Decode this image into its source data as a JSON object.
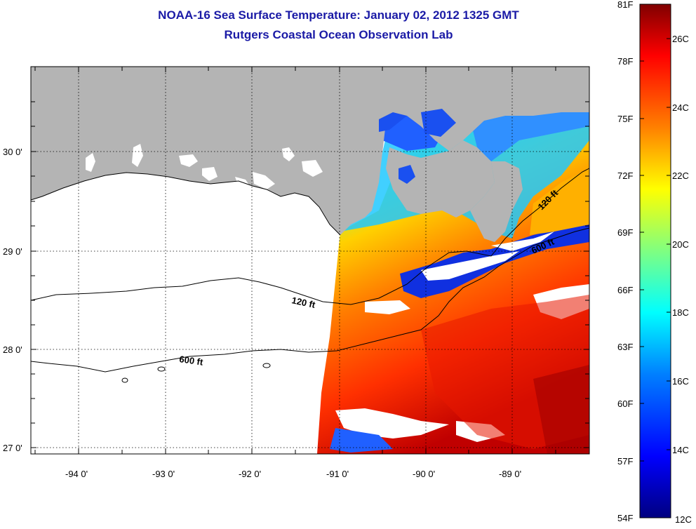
{
  "title": "NOAA-16 Sea Surface Temperature:  January 02, 2012 1325 GMT",
  "subtitle": "Rutgers Coastal Ocean Observation Lab",
  "map": {
    "lon_ticks": [
      "-94 0'",
      "-93 0'",
      "-92 0'",
      "-91 0'",
      "-90 0'",
      "-89 0'"
    ],
    "lat_ticks": [
      "30 0'",
      "29 0'",
      "28 0'",
      "27 0'"
    ],
    "contour_labels": [
      "120 ft",
      "600 ft",
      "120 ft",
      "600 ft"
    ],
    "colors": {
      "land": "#b4b4b4",
      "no_data": "#ffffff",
      "contour": "#000000",
      "grid": "#000000"
    }
  },
  "colorbar": {
    "f_labels": [
      "81F",
      "78F",
      "75F",
      "72F",
      "69F",
      "66F",
      "63F",
      "60F",
      "57F",
      "54F"
    ],
    "c_labels": [
      "26C",
      "24C",
      "22C",
      "20C",
      "18C",
      "16C",
      "14C",
      "12C"
    ],
    "colormap": [
      "#800000",
      "#ff0000",
      "#ff8000",
      "#ffff00",
      "#80ff80",
      "#00ffff",
      "#0080ff",
      "#0000ff",
      "#000080"
    ]
  }
}
